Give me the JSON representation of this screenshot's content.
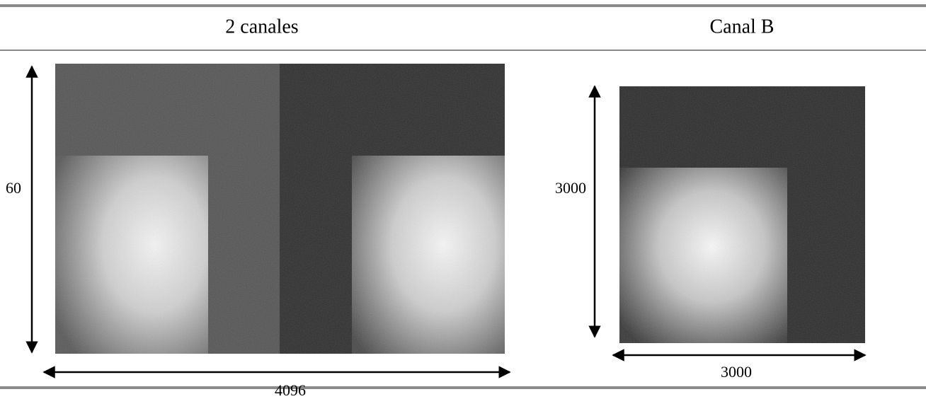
{
  "columns": [
    {
      "title": "2 canales",
      "height_label": "60",
      "width_label": "4096"
    },
    {
      "title": "Canal B",
      "height_label": "3000",
      "width_label": "3000"
    }
  ]
}
